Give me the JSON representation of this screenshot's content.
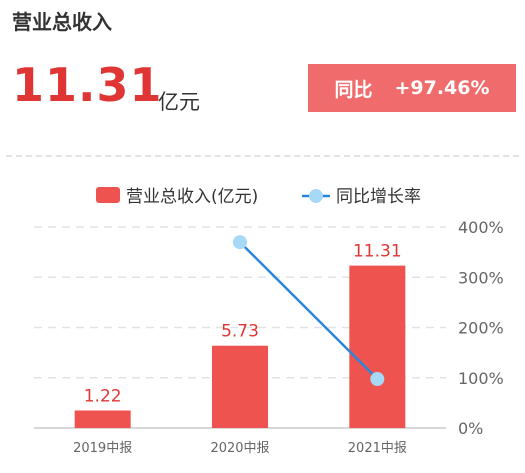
{
  "header": {
    "title": "营业总收入",
    "value": "11.31",
    "unit": "亿元",
    "yoy_label": "同比",
    "yoy_value": "+97.46%"
  },
  "colors": {
    "bar": "#ef5350",
    "line": "#2b86d9",
    "marker": "#a7d9f7",
    "grid": "#e3e3e3",
    "label_red": "#e03535",
    "axis_text": "#666666"
  },
  "chart_data": {
    "type": "bar",
    "categories": [
      "2019中报",
      "2020中报",
      "2021中报"
    ],
    "series": [
      {
        "name": "营业总收入(亿元)",
        "type": "bar",
        "values": [
          1.22,
          5.73,
          11.31
        ],
        "labels": [
          "1.22",
          "5.73",
          "11.31"
        ]
      },
      {
        "name": "同比增长率",
        "type": "line",
        "axis": "right",
        "values": [
          null,
          369.7,
          97.46
        ]
      }
    ],
    "y_right": {
      "min": 0,
      "max": 400,
      "ticks": [
        "0%",
        "100%",
        "200%",
        "300%",
        "400%"
      ]
    },
    "y_left": {
      "min": 0,
      "max": 14
    },
    "grid": true,
    "legend": "top-center"
  }
}
